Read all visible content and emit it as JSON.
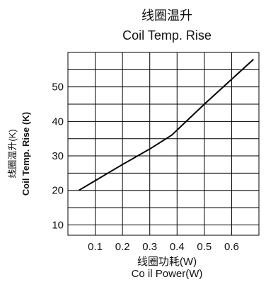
{
  "chart_data": {
    "type": "line",
    "title": "线圈温升",
    "subtitle": "Coil Temp. Rise",
    "xlabel": "线圈功耗(W)",
    "xlabel_en": "Co il Power(W)",
    "ylabel": "线圈温升(K)",
    "ylabel_en": "Coil Temp. Rise  (K)",
    "xlim": [
      0,
      0.7
    ],
    "ylim": [
      7,
      60
    ],
    "x_ticks": [
      0.1,
      0.2,
      0.3,
      0.4,
      0.5,
      0.6
    ],
    "x_tick_labels": [
      "0.1",
      "0.2",
      "0.3",
      "0.4",
      "0.5",
      "0.6"
    ],
    "x_grid": [
      0.1,
      0.2,
      0.3,
      0.4,
      0.5,
      0.6
    ],
    "y_ticks": [
      10,
      20,
      30,
      40,
      50
    ],
    "y_tick_labels": [
      "10",
      "20",
      "30",
      "40",
      "50"
    ],
    "y_grid": [
      10,
      15,
      20,
      25,
      30,
      35,
      40,
      45,
      50,
      55
    ],
    "grid": true,
    "legend": "none",
    "series": [
      {
        "x": [
          0.04,
          0.2,
          0.3,
          0.38,
          0.5,
          0.68
        ],
        "y": [
          20,
          27.5,
          32,
          36,
          45,
          58
        ]
      }
    ],
    "line_color": "#000000",
    "grid_color": "#000000"
  }
}
